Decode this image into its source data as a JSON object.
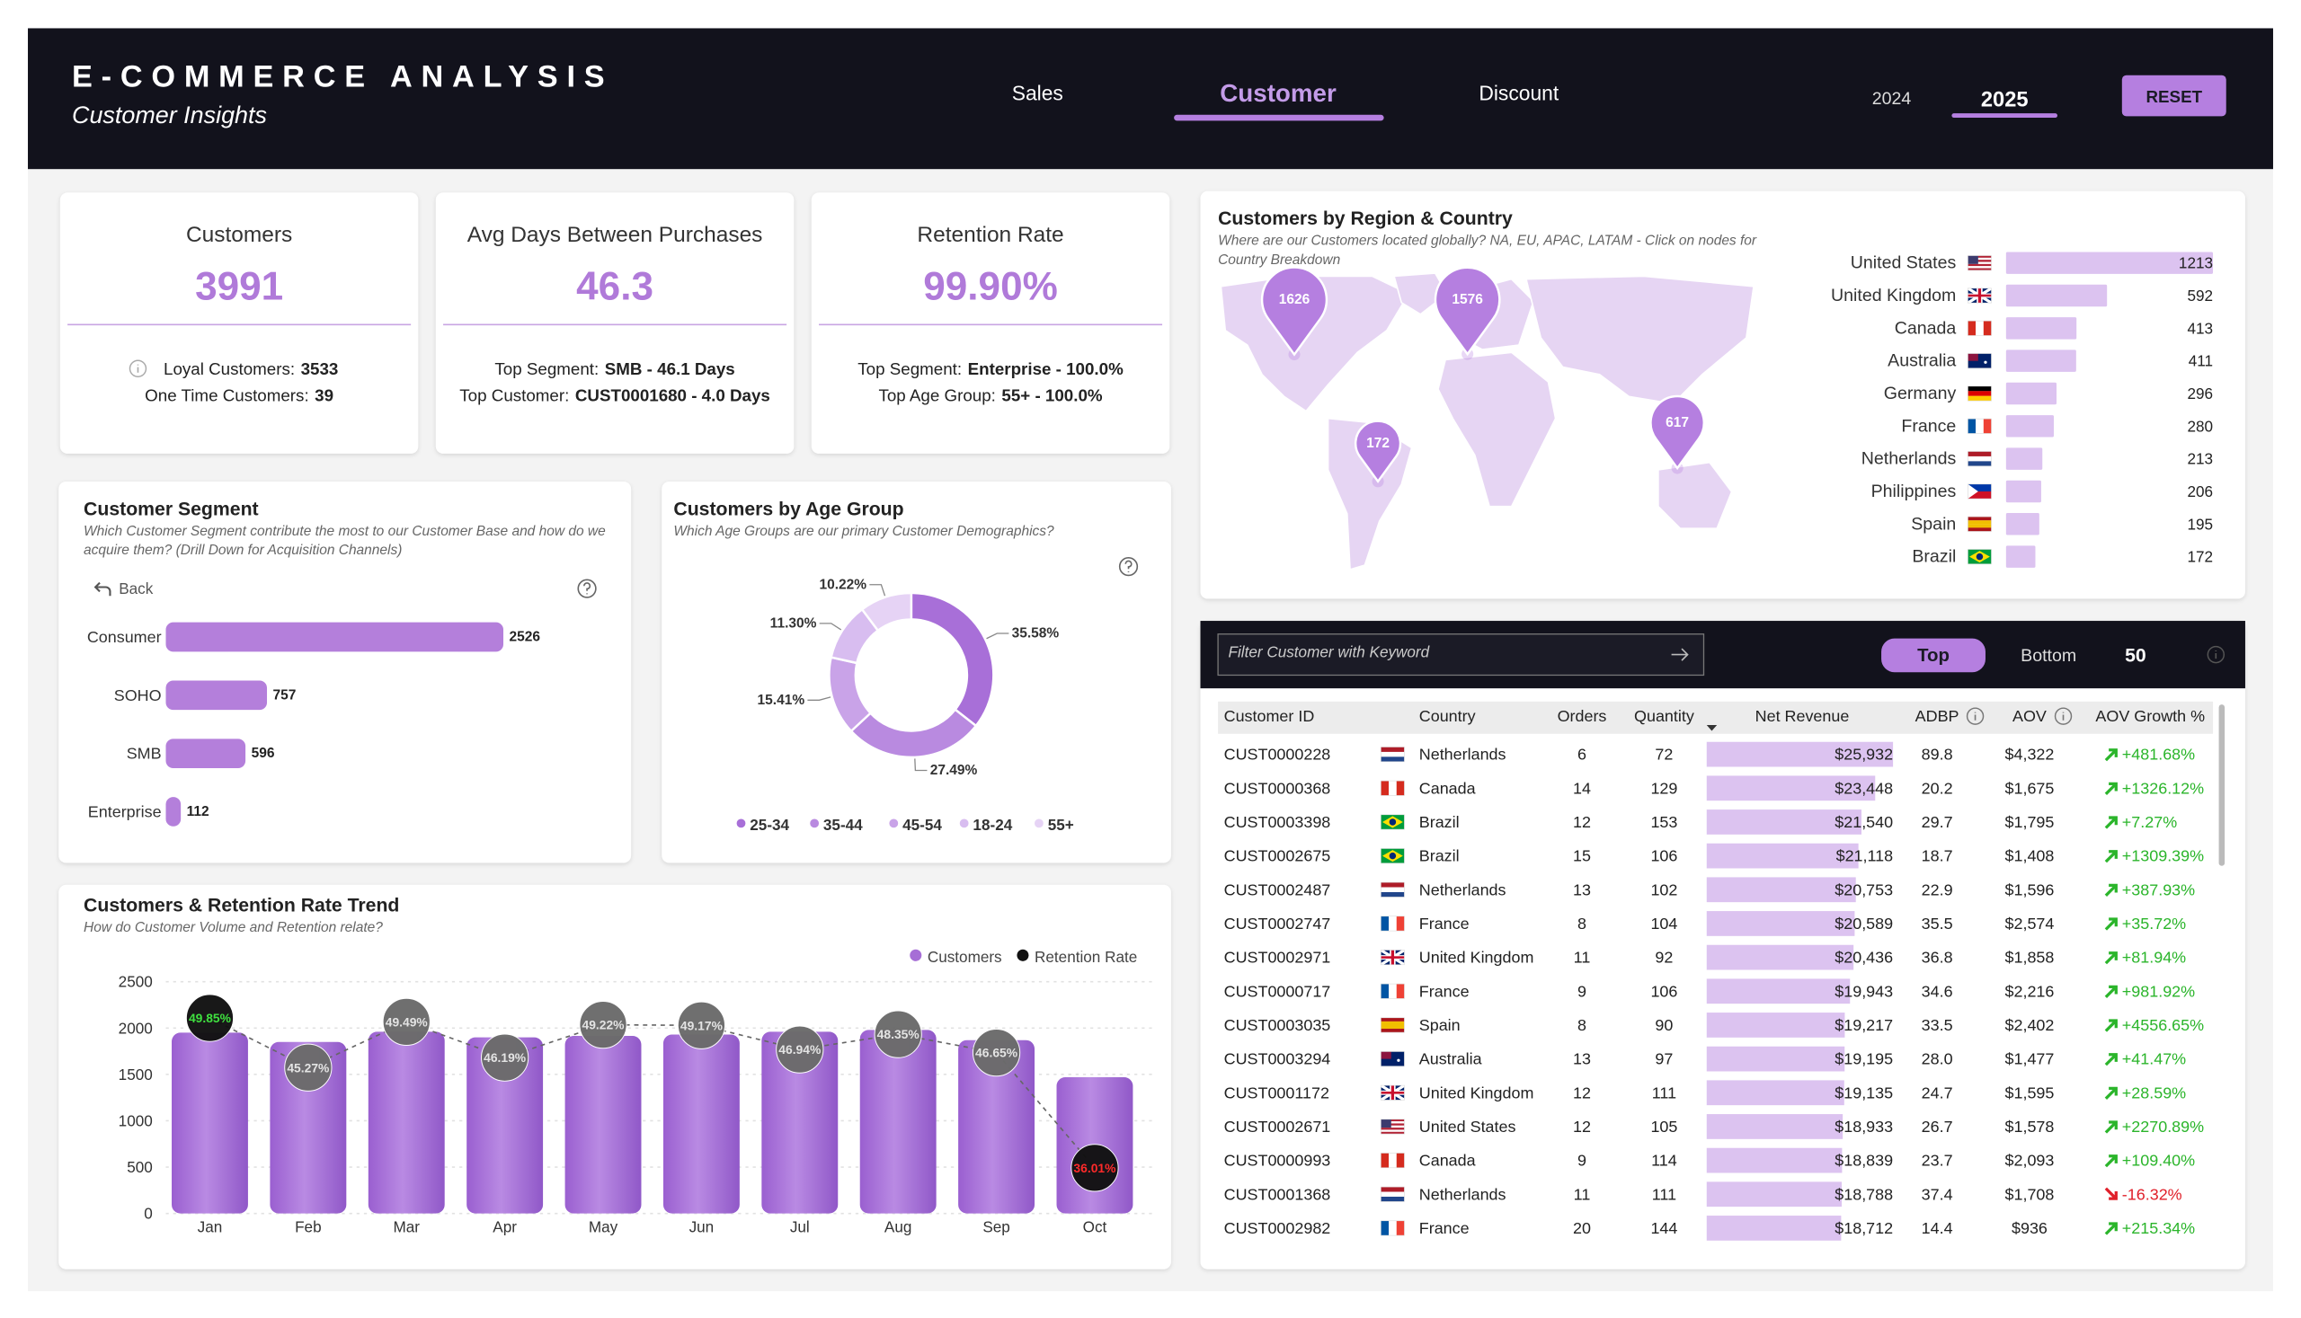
{
  "header": {
    "title": "E-COMMERCE ANALYSIS",
    "subtitle": "Customer Insights",
    "nav": [
      "Sales",
      "Customer",
      "Discount"
    ],
    "years": [
      "2024",
      "2025"
    ],
    "reset": "RESET"
  },
  "kpis": [
    {
      "title": "Customers",
      "value": "3991",
      "details": [
        {
          "label": "Loyal Customers:",
          "value": "3533"
        },
        {
          "label": "One Time Customers:",
          "value": "39"
        }
      ]
    },
    {
      "title": "Avg Days Between Purchases",
      "value": "46.3",
      "details": [
        {
          "label": "Top Segment:",
          "value": "SMB - 46.1 Days"
        },
        {
          "label": "Top Customer:",
          "value": "CUST0001680 - 4.0 Days"
        }
      ]
    },
    {
      "title": "Retention Rate",
      "value": "99.90%",
      "details": [
        {
          "label": "Top Segment:",
          "value": "Enterprise - 100.0%"
        },
        {
          "label": "Top Age Group:",
          "value": "55+ - 100.0%"
        }
      ]
    }
  ],
  "chart_data": [
    {
      "type": "bar",
      "orientation": "horizontal",
      "title": "Customer Segment",
      "subtitle": [
        "Which Customer Segment contribute the most to our Customer Base and how do we",
        "acquire them? (Drill Down for Acquisition Channels)"
      ],
      "back": "Back",
      "categories": [
        "Consumer",
        "SOHO",
        "SMB",
        "Enterprise"
      ],
      "values": [
        2526,
        757,
        596,
        112
      ],
      "color": "#b47fdb"
    },
    {
      "type": "donut",
      "title": "Customers by Age Group",
      "subtitle": [
        "Which Age Groups are our primary Customer Demographics?"
      ],
      "categories": [
        "25-34",
        "35-44",
        "45-54",
        "18-24",
        "55+"
      ],
      "values": [
        35.58,
        27.49,
        15.41,
        11.3,
        10.22
      ],
      "value_labels": [
        "35.58%",
        "27.49%",
        "15.41%",
        "11.30%",
        "10.22%"
      ],
      "colors": [
        "#a86fd8",
        "#b98ae0",
        "#c9a3e8",
        "#d8bdf0",
        "#e6d3f5"
      ],
      "legend": "bottom"
    },
    {
      "type": "combo",
      "title": "Customers & Retention Rate Trend",
      "subtitle": [
        "How do Customer Volume and Retention relate?"
      ],
      "categories": [
        "Jan",
        "Feb",
        "Mar",
        "Apr",
        "May",
        "Jun",
        "Jul",
        "Aug",
        "Sep",
        "Oct"
      ],
      "series": [
        {
          "name": "Customers",
          "color": "#a66ed6",
          "values": [
            1950,
            1850,
            1960,
            1900,
            1915,
            1930,
            1960,
            1980,
            1870,
            1470
          ]
        },
        {
          "name": "Retention Rate",
          "color": "#111111",
          "axis": "y2",
          "values": [
            49.85,
            45.27,
            49.49,
            46.19,
            49.22,
            49.17,
            46.94,
            48.35,
            46.65,
            36.01
          ],
          "value_labels": [
            "49.85%",
            "45.27%",
            "49.49%",
            "46.19%",
            "49.22%",
            "49.17%",
            "46.94%",
            "48.35%",
            "46.65%",
            "36.01%"
          ]
        }
      ],
      "ylim": [
        0,
        2500
      ],
      "yticks": [
        0,
        500,
        1000,
        1500,
        2000,
        2500
      ],
      "y2lim": [
        31.8,
        53.2
      ],
      "grid": true,
      "legend": "top-right"
    },
    {
      "type": "map",
      "title": "Customers by Region & Country",
      "subtitle": [
        "Where are our Customers located globally? NA, EU, APAC, LATAM - Click on nodes for",
        "Country Breakdown"
      ],
      "values": [
        1626,
        1576,
        172,
        617
      ],
      "color": "#b57fe0"
    },
    {
      "type": "bar",
      "orientation": "horizontal",
      "categories": [
        "United States",
        "United Kingdom",
        "Canada",
        "Australia",
        "Germany",
        "France",
        "Netherlands",
        "Philippines",
        "Spain",
        "Brazil"
      ],
      "values": [
        1213,
        592,
        413,
        411,
        296,
        280,
        213,
        206,
        195,
        172
      ],
      "color": "#dcc3f0"
    }
  ],
  "table": {
    "filter_placeholder": "Filter Customer with Keyword",
    "toggle": [
      "Top",
      "Bottom"
    ],
    "count": "50",
    "columns": [
      "Customer ID",
      "Country",
      "Orders",
      "Quantity",
      "Net Revenue",
      "ADBP",
      "AOV",
      "AOV Growth %"
    ],
    "rows": [
      [
        "CUST0000228",
        "Netherlands",
        "6",
        "72",
        "$25,932",
        "89.8",
        "$4,322",
        "+481.68%"
      ],
      [
        "CUST0000368",
        "Canada",
        "14",
        "129",
        "$23,448",
        "20.2",
        "$1,675",
        "+1326.12%"
      ],
      [
        "CUST0003398",
        "Brazil",
        "12",
        "153",
        "$21,540",
        "29.7",
        "$1,795",
        "+7.27%"
      ],
      [
        "CUST0002675",
        "Brazil",
        "15",
        "106",
        "$21,118",
        "18.7",
        "$1,408",
        "+1309.39%"
      ],
      [
        "CUST0002487",
        "Netherlands",
        "13",
        "102",
        "$20,753",
        "22.9",
        "$1,596",
        "+387.93%"
      ],
      [
        "CUST0002747",
        "France",
        "8",
        "104",
        "$20,589",
        "35.5",
        "$2,574",
        "+35.72%"
      ],
      [
        "CUST0002971",
        "United Kingdom",
        "11",
        "92",
        "$20,436",
        "36.8",
        "$1,858",
        "+81.94%"
      ],
      [
        "CUST0000717",
        "France",
        "9",
        "106",
        "$19,943",
        "34.6",
        "$2,216",
        "+981.92%"
      ],
      [
        "CUST0003035",
        "Spain",
        "8",
        "90",
        "$19,217",
        "33.5",
        "$2,402",
        "+4556.65%"
      ],
      [
        "CUST0003294",
        "Australia",
        "13",
        "97",
        "$19,195",
        "28.0",
        "$1,477",
        "+41.47%"
      ],
      [
        "CUST0001172",
        "United Kingdom",
        "12",
        "111",
        "$19,135",
        "24.7",
        "$1,595",
        "+28.59%"
      ],
      [
        "CUST0002671",
        "United States",
        "12",
        "105",
        "$18,933",
        "26.7",
        "$1,578",
        "+2270.89%"
      ],
      [
        "CUST0000993",
        "Canada",
        "9",
        "114",
        "$18,839",
        "23.7",
        "$2,093",
        "+109.40%"
      ],
      [
        "CUST0001368",
        "Netherlands",
        "11",
        "111",
        "$18,788",
        "37.4",
        "$1,708",
        "-16.32%"
      ],
      [
        "CUST0002982",
        "France",
        "20",
        "144",
        "$18,712",
        "14.4",
        "$936",
        "+215.34%"
      ]
    ]
  }
}
